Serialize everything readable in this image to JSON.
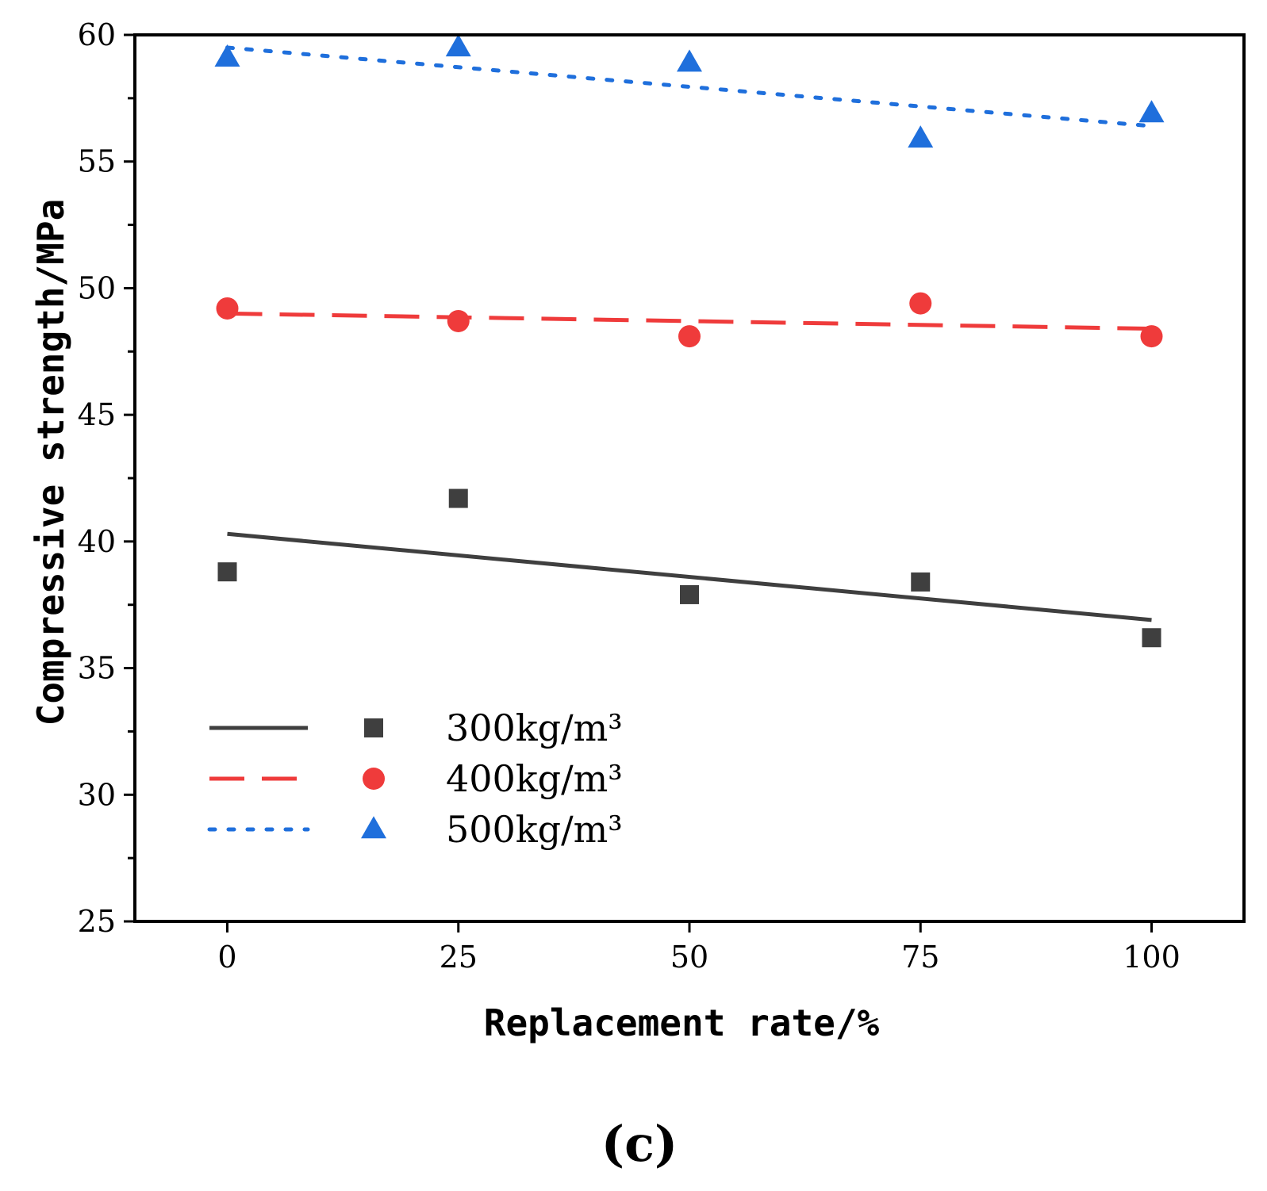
{
  "chart_data": {
    "type": "scatter",
    "title": "",
    "xlabel": "Replacement rate/%",
    "ylabel": "Compressive strength/MPa",
    "xlim": [
      -10,
      110
    ],
    "ylim": [
      25,
      60
    ],
    "xticks": [
      0,
      25,
      50,
      75,
      100
    ],
    "yticks": [
      25,
      30,
      35,
      40,
      45,
      50,
      55,
      60
    ],
    "x_tick_labels": [
      "0",
      "25",
      "50",
      "75",
      "100"
    ],
    "y_tick_labels": [
      "25",
      "30",
      "35",
      "40",
      "45",
      "50",
      "55",
      "60"
    ],
    "grid": false,
    "legend_position": "lower-left",
    "panel_label": "(c)",
    "x": [
      0,
      25,
      50,
      75,
      100
    ],
    "series": [
      {
        "name": "300kg/m³",
        "values": [
          38.8,
          41.7,
          37.9,
          38.4,
          36.2
        ],
        "marker": "square",
        "line_style": "solid",
        "color": "#3f3f3f",
        "fit": {
          "x": [
            0,
            100
          ],
          "y": [
            40.3,
            36.9
          ]
        }
      },
      {
        "name": "400kg/m³",
        "values": [
          49.2,
          48.7,
          48.1,
          49.4,
          48.1
        ],
        "marker": "circle",
        "line_style": "dashed",
        "color": "#ef3b3b",
        "fit": {
          "x": [
            0,
            100
          ],
          "y": [
            49.0,
            48.4
          ]
        }
      },
      {
        "name": "500kg/m³",
        "values": [
          59.1,
          59.5,
          58.9,
          55.9,
          56.9
        ],
        "marker": "triangle",
        "line_style": "dotted",
        "color": "#1f6fdc",
        "fit": {
          "x": [
            0,
            100
          ],
          "y": [
            59.5,
            56.4
          ]
        }
      }
    ]
  }
}
